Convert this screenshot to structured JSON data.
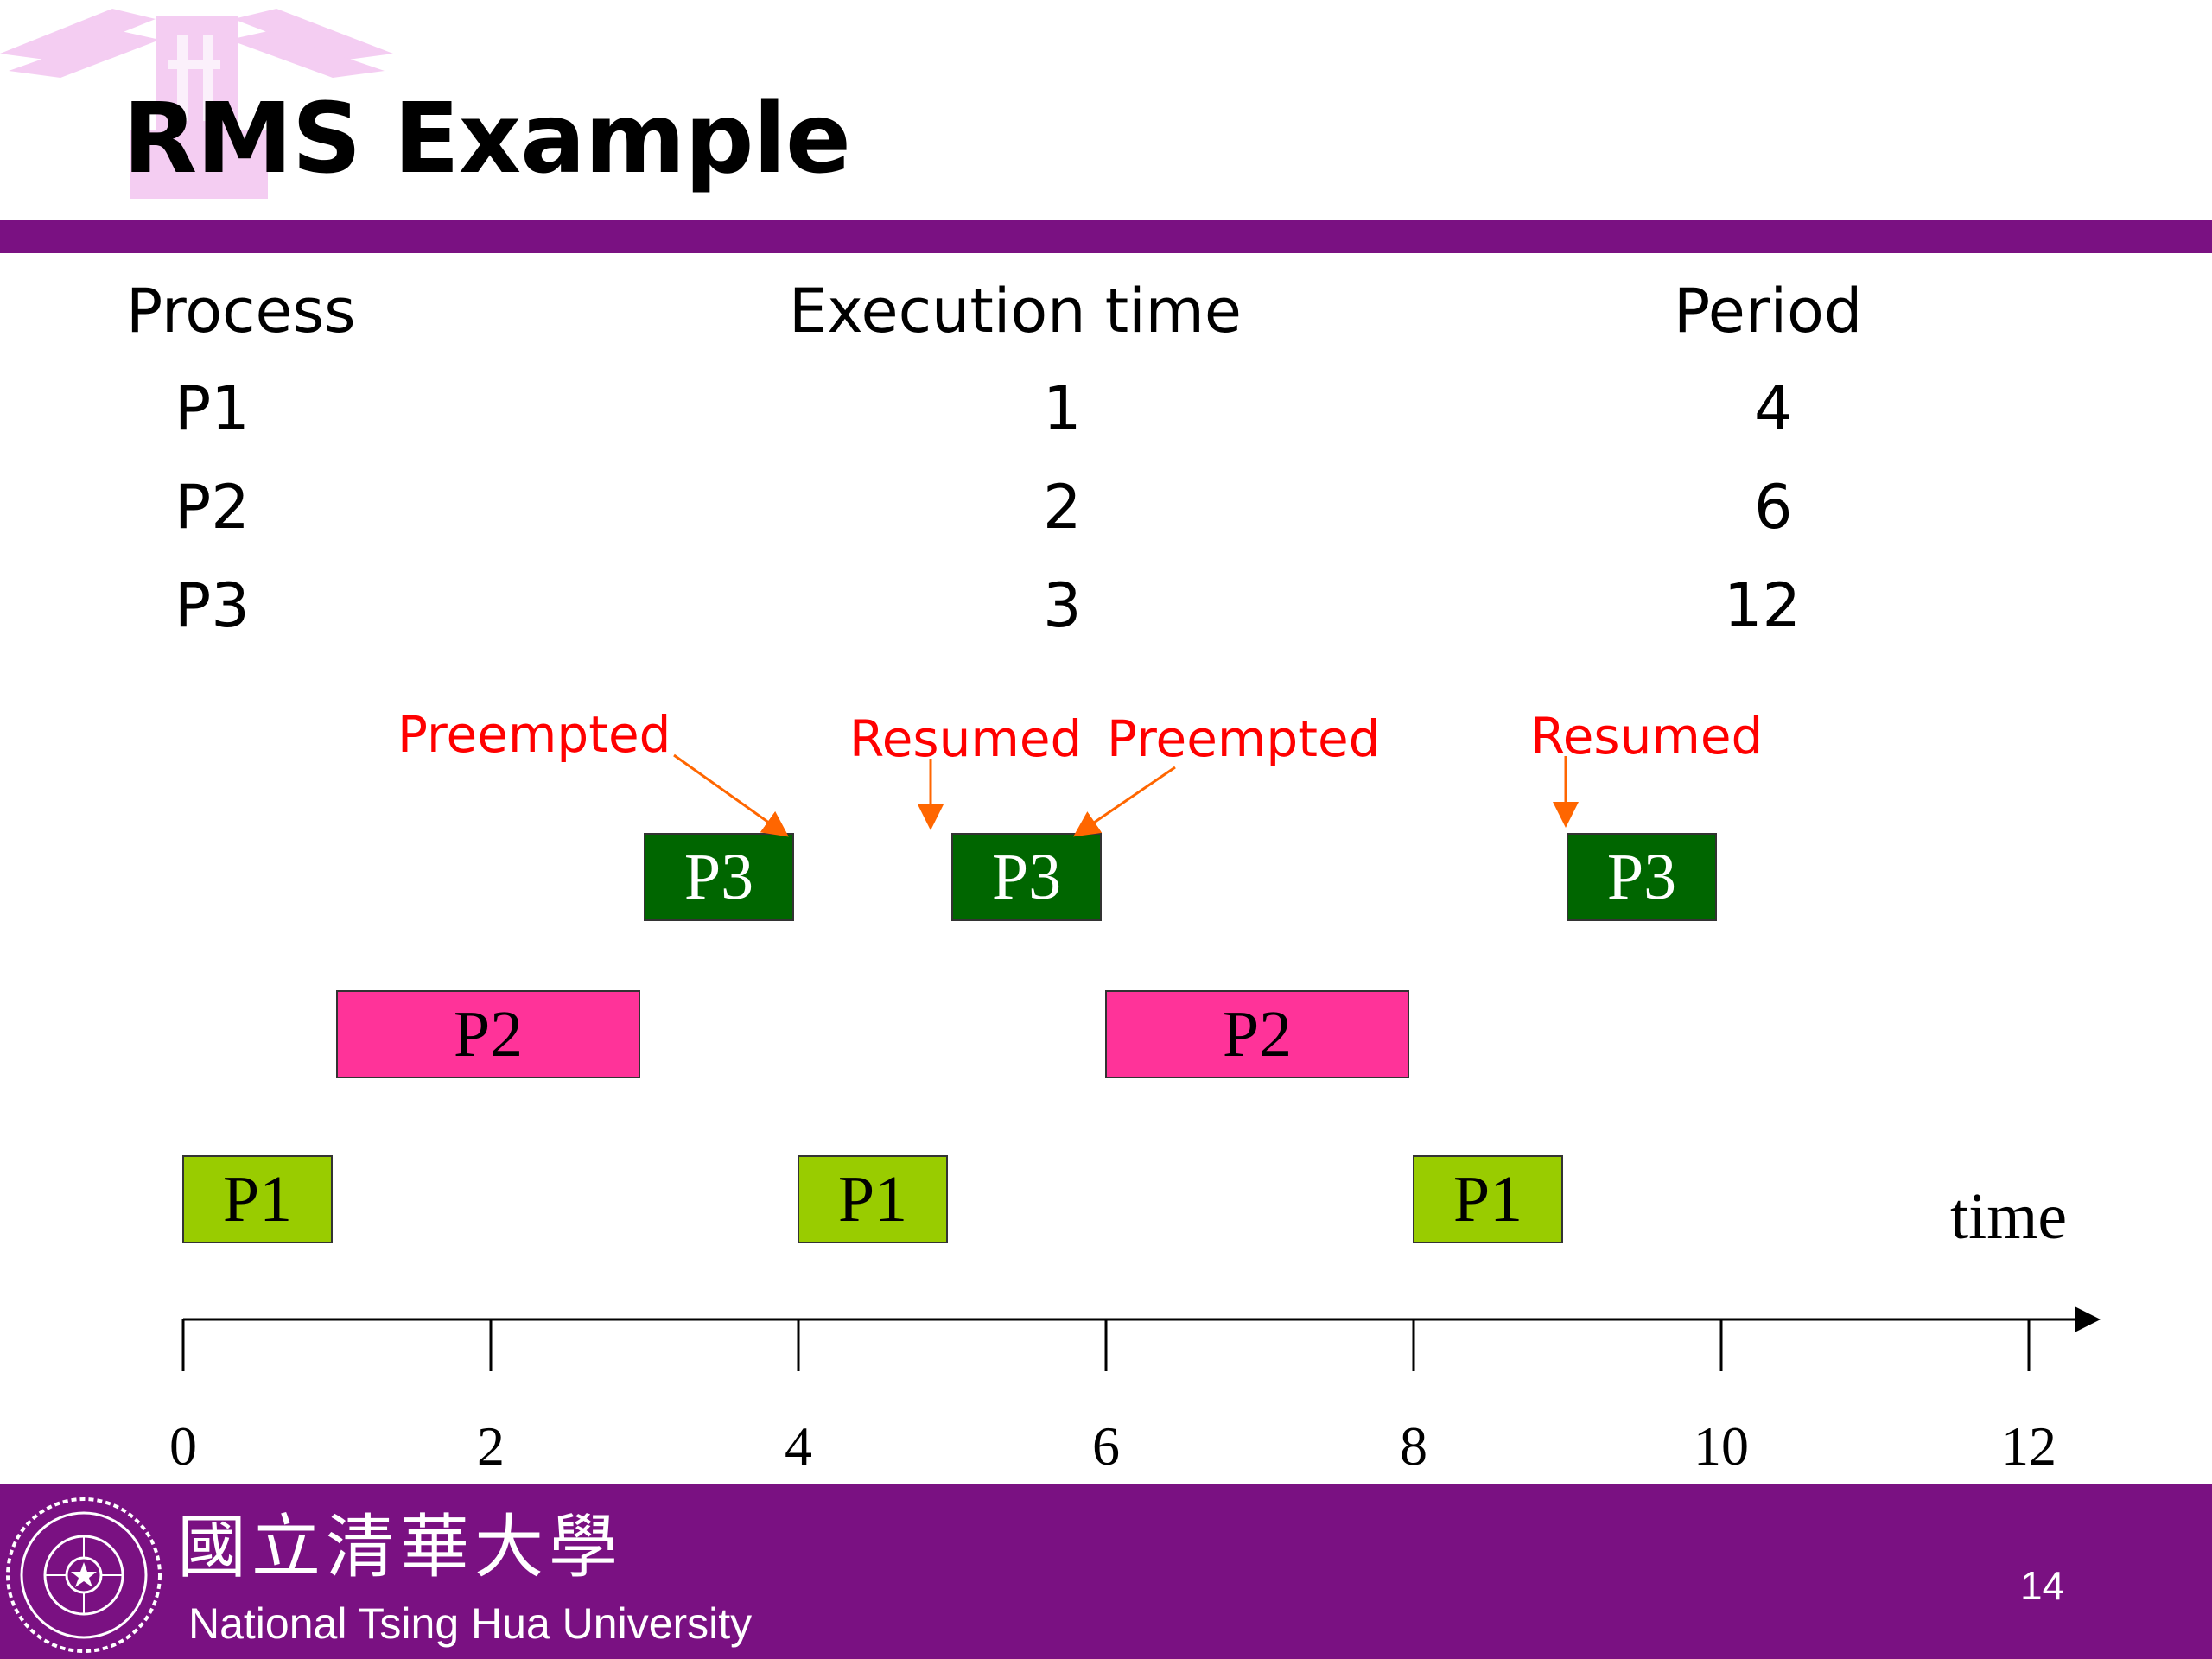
{
  "slide": {
    "title": "RMS Example",
    "page_number": "14"
  },
  "table": {
    "headers": [
      "Process",
      "Execution time",
      "Period"
    ],
    "rows": [
      {
        "process": "P1",
        "exec": "1",
        "period": "4"
      },
      {
        "process": "P2",
        "exec": "2",
        "period": "6"
      },
      {
        "process": "P3",
        "exec": "3",
        "period": "12"
      }
    ]
  },
  "schedule": {
    "axis_label": "time",
    "ticks": [
      "0",
      "2",
      "4",
      "6",
      "8",
      "10",
      "12"
    ],
    "blocks": [
      {
        "label": "P1",
        "start": 0,
        "end": 1,
        "color": "#99cc00"
      },
      {
        "label": "P2",
        "start": 1,
        "end": 3,
        "color": "#ff3399"
      },
      {
        "label": "P3",
        "start": 3,
        "end": 4,
        "color": "#006600"
      },
      {
        "label": "P1",
        "start": 4,
        "end": 5,
        "color": "#99cc00"
      },
      {
        "label": "P3",
        "start": 5,
        "end": 6,
        "color": "#006600"
      },
      {
        "label": "P2",
        "start": 6,
        "end": 8,
        "color": "#ff3399"
      },
      {
        "label": "P1",
        "start": 8,
        "end": 9,
        "color": "#99cc00"
      },
      {
        "label": "P3",
        "start": 9,
        "end": 10,
        "color": "#006600"
      }
    ],
    "annotations": [
      {
        "text": "Preempted",
        "color": "#ff0000"
      },
      {
        "text": "Resumed",
        "color": "#ff0000"
      },
      {
        "text": "Preempted",
        "color": "#ff0000"
      },
      {
        "text": "Resumed",
        "color": "#ff0000"
      }
    ],
    "arrow_color": "#ff6600"
  },
  "footer": {
    "university_en": "National Tsing Hua University",
    "university_zh": "國立清華大學",
    "bar_color": "#7a1182"
  }
}
